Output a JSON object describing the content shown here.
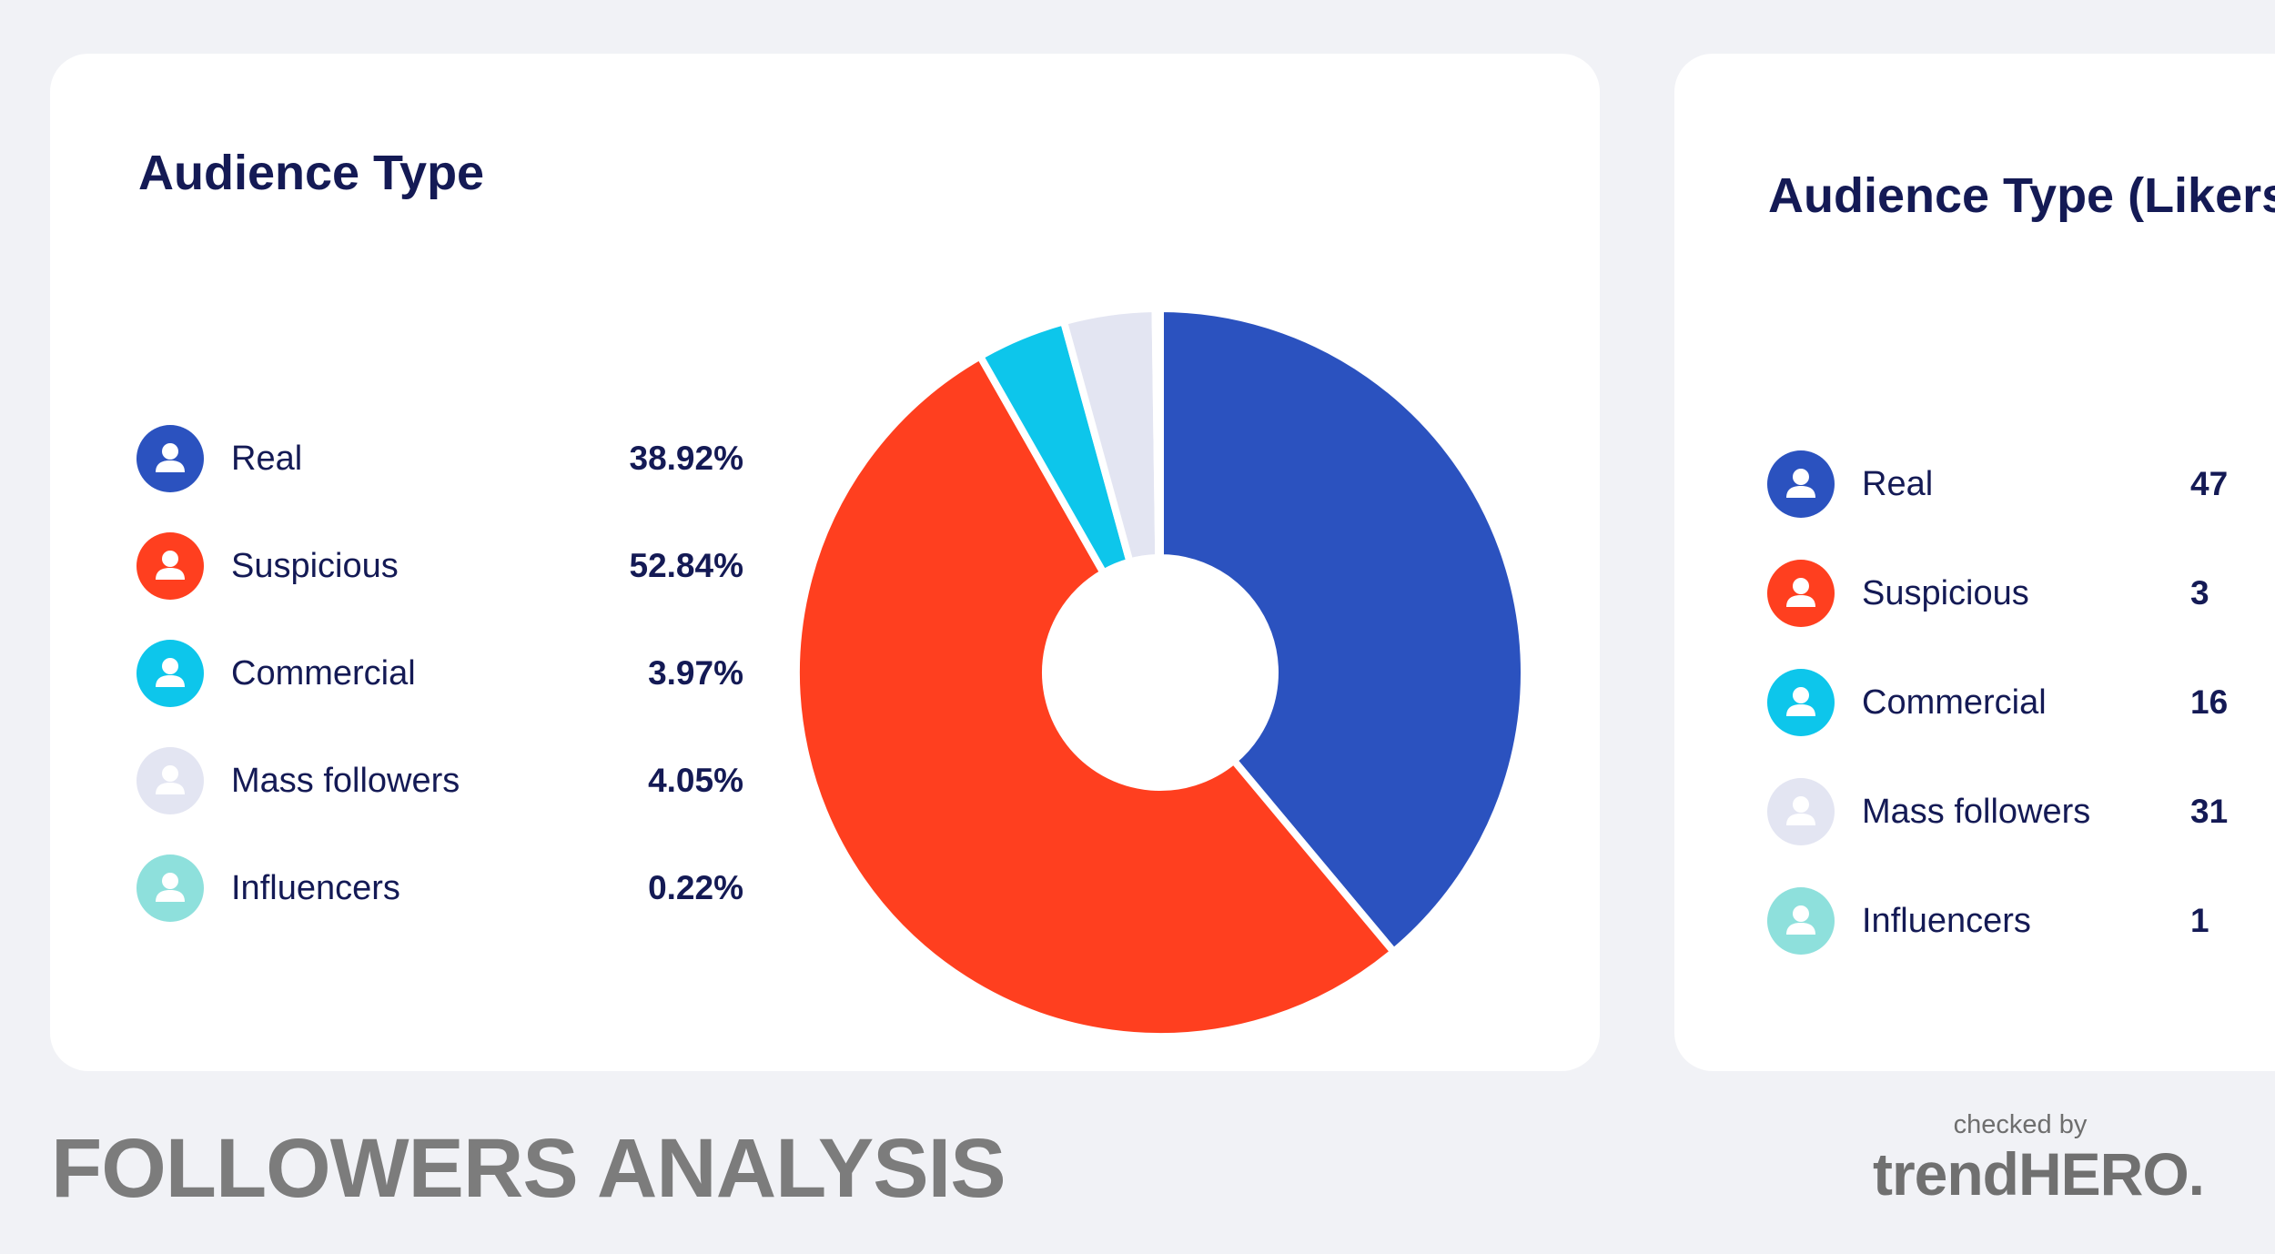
{
  "chart_data": [
    {
      "type": "pie",
      "title": "Audience Type",
      "categories": [
        "Real",
        "Suspicious",
        "Commercial",
        "Mass followers",
        "Influencers"
      ],
      "values": [
        38.92,
        52.84,
        3.97,
        4.05,
        0.22
      ],
      "value_labels": [
        "38.92%",
        "52.84%",
        "3.97%",
        "4.05%",
        "0.22%"
      ],
      "colors": [
        "#2b52bf",
        "#ff3f1f",
        "#0dc6eb",
        "#e3e5f2",
        "#8ee0dc"
      ],
      "legend_placement": "left"
    },
    {
      "type": "pie",
      "title": "Audience Type (Likers",
      "categories": [
        "Real",
        "Suspicious",
        "Commercial",
        "Mass followers",
        "Influencers"
      ],
      "value_labels": [
        "47",
        "3",
        "16",
        "31",
        "1"
      ],
      "colors": [
        "#2b52bf",
        "#ff3f1f",
        "#0dc6eb",
        "#e3e5f2",
        "#8ee0dc"
      ],
      "legend_placement": "left"
    }
  ],
  "footer": {
    "title": "FOLLOWERS ANALYSIS",
    "checked_by": "checked by",
    "brand": "trendHERO."
  }
}
